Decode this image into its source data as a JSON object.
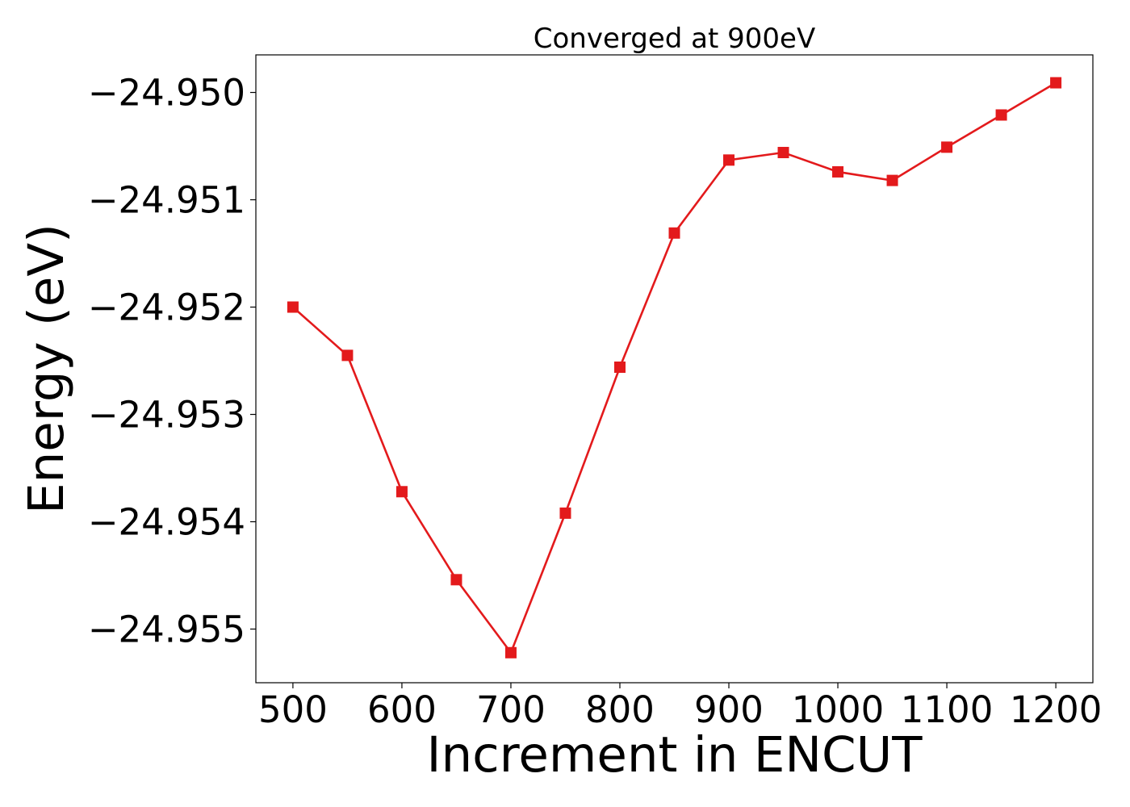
{
  "chart_data": {
    "type": "line",
    "title": "Converged at 900eV",
    "xlabel": "Increment in ENCUT",
    "ylabel": "Energy (eV)",
    "xlim": [
      466,
      1234
    ],
    "ylim": [
      -24.9555,
      -24.94965
    ],
    "xticks": [
      500,
      600,
      700,
      800,
      900,
      1000,
      1100,
      1200
    ],
    "xtick_labels": [
      "500",
      "600",
      "700",
      "800",
      "900",
      "1000",
      "1100",
      "1200"
    ],
    "yticks": [
      -24.95,
      -24.951,
      -24.952,
      -24.953,
      -24.954,
      -24.955
    ],
    "ytick_labels": [
      "−24.950",
      "−24.951",
      "−24.952",
      "−24.953",
      "−24.954",
      "−24.955"
    ],
    "grid": false,
    "series": [
      {
        "color": "#e31a1c",
        "marker": "square",
        "x": [
          500,
          550,
          600,
          650,
          700,
          750,
          800,
          850,
          900,
          950,
          1000,
          1050,
          1100,
          1150,
          1200
        ],
        "y": [
          -24.952,
          -24.95245,
          -24.95372,
          -24.95454,
          -24.95522,
          -24.95392,
          -24.95256,
          -24.95131,
          -24.95063,
          -24.95056,
          -24.95074,
          -24.95082,
          -24.95051,
          -24.95021,
          -24.94991
        ]
      }
    ]
  }
}
